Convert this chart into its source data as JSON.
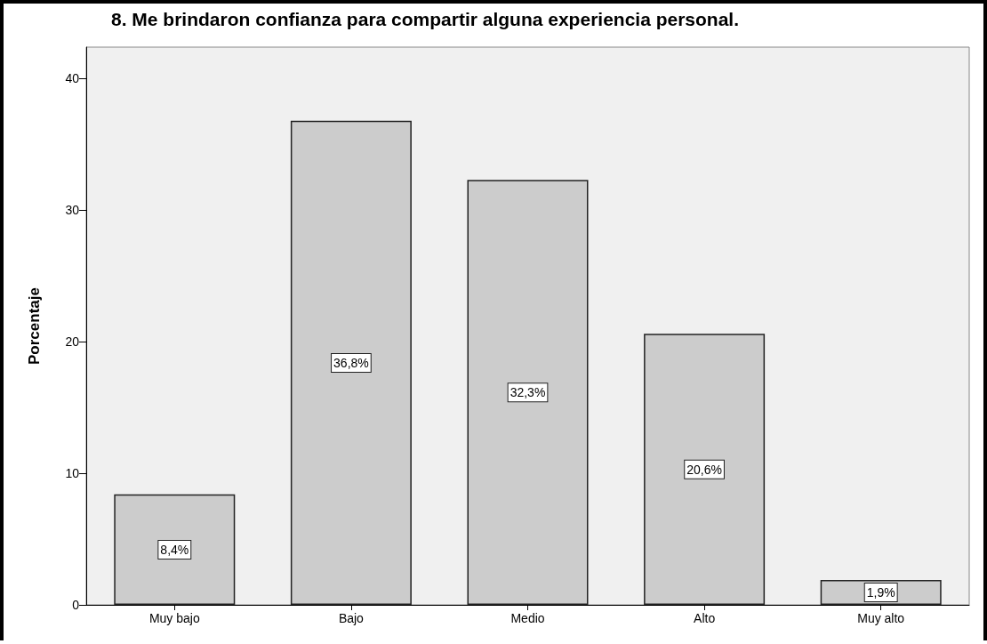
{
  "chart_data": {
    "type": "bar",
    "title": "8. Me brindaron confianza para compartir alguna experiencia personal.",
    "ylabel": "Porcentaje",
    "categories": [
      "Muy bajo",
      "Bajo",
      "Medio",
      "Alto",
      "Muy alto"
    ],
    "values": [
      8.4,
      36.8,
      32.3,
      20.6,
      1.9
    ],
    "value_labels": [
      "8,4%",
      "36,8%",
      "32,3%",
      "20,6%",
      "1,9%"
    ],
    "color": "#cccccc",
    "ylim": [
      0,
      42.4
    ],
    "yticks": [
      0,
      10,
      20,
      30,
      40
    ],
    "grid": false
  }
}
